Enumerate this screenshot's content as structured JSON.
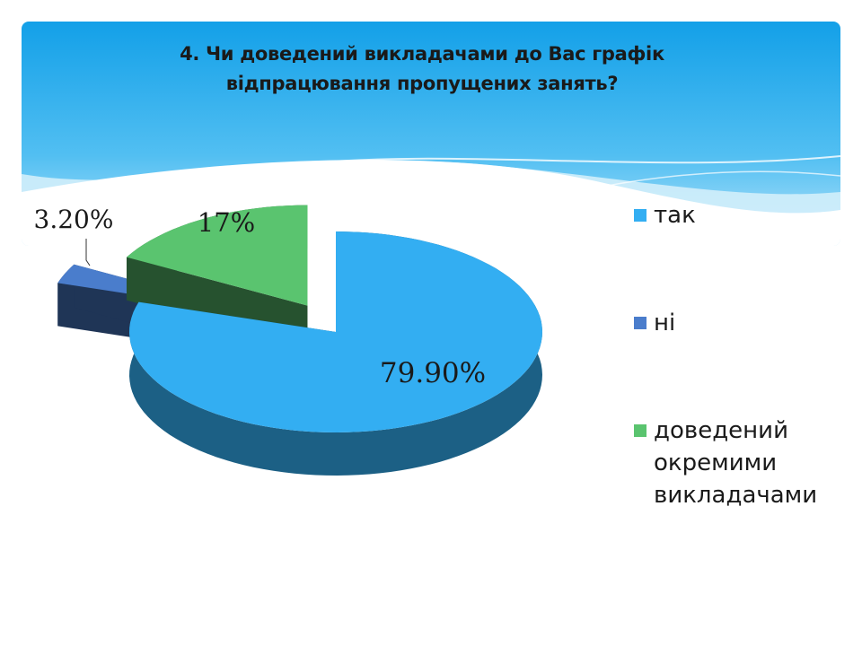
{
  "slide": {
    "title": "4. Чи доведений викладачами до Вас графік відпрацювання пропущених занять?"
  },
  "chart_data": {
    "type": "pie",
    "style": "3d-exploded",
    "title": "4. Чи доведений викладачами до Вас графік відпрацювання пропущених занять?",
    "categories": [
      "так",
      "ні",
      "доведений окремими викладачами"
    ],
    "values": [
      79.9,
      3.2,
      17
    ],
    "data_labels": [
      "79.90%",
      "3.20%",
      "17%"
    ],
    "colors": [
      "#33aef2",
      "#4a7dcc",
      "#5ac46f"
    ],
    "legend": {
      "position": "right",
      "items": [
        "так",
        "ні",
        "доведений окремими викладачами"
      ]
    }
  }
}
